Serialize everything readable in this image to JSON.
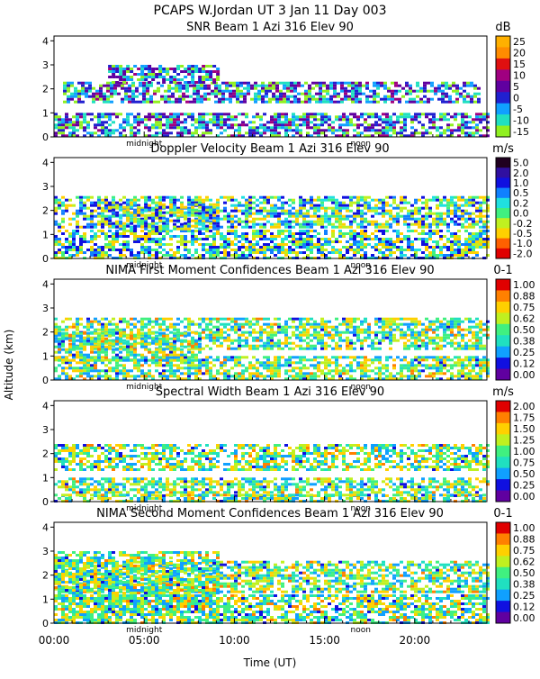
{
  "header": {
    "line1": "PCAPS W.Jordan UT   3 Jan 11 Day 003"
  },
  "x_axis": {
    "label": "Time (UT)",
    "tick_labels": [
      "00:00",
      "05:00",
      "10:00",
      "15:00",
      "20:00"
    ],
    "tick_values_hours": [
      0,
      5,
      10,
      15,
      20
    ],
    "range_hours": [
      0,
      24
    ],
    "markers": [
      {
        "label": "midnight",
        "hour": 5
      },
      {
        "label": "noon",
        "hour": 17
      }
    ]
  },
  "y_axis": {
    "label": "Altitude (km)",
    "range_km": [
      0,
      4.2
    ],
    "tick_labels": [
      "0",
      "1",
      "2",
      "3",
      "4"
    ],
    "tick_values": [
      0,
      1,
      2,
      3,
      4
    ]
  },
  "panels": [
    {
      "title": "SNR Beam 1 Azi 316 Elev 90",
      "unit": "dB",
      "colorbar": {
        "labels": [
          "25",
          "20",
          "15",
          "10",
          "5",
          "0",
          "-5",
          "-10",
          "-15"
        ],
        "colors": [
          "#ffb000",
          "#ff8c00",
          "#e01010",
          "#a00080",
          "#6000a0",
          "#2020d0",
          "#10a0ff",
          "#20e0c0",
          "#90f020"
        ]
      }
    },
    {
      "title": "Doppler Velocity Beam 1 Azi 316 Elev 90",
      "unit": "m/s",
      "colorbar": {
        "labels": [
          "5.0",
          "2.0",
          "1.0",
          "0.5",
          "0.2",
          "0.0",
          "-0.2",
          "-0.5",
          "-1.0",
          "-2.0"
        ],
        "colors": [
          "#200020",
          "#3010a0",
          "#1010e0",
          "#1080ff",
          "#20e0e0",
          "#40f080",
          "#c0f020",
          "#ffd000",
          "#ff6000",
          "#e00000"
        ]
      }
    },
    {
      "title": "NIMA First Moment Confidences Beam 1 Azi 316 Elev 90",
      "unit": "0-1",
      "colorbar": {
        "labels": [
          "1.00",
          "0.88",
          "0.75",
          "0.62",
          "0.50",
          "0.38",
          "0.25",
          "0.12",
          "0.00"
        ],
        "colors": [
          "#e00000",
          "#ff8000",
          "#ffd000",
          "#c0f020",
          "#40f080",
          "#20e0c0",
          "#10a0ff",
          "#1010e0",
          "#6000a0"
        ]
      }
    },
    {
      "title": "Spectral Width Beam 1 Azi 316 Elev 90",
      "unit": "m/s",
      "colorbar": {
        "labels": [
          "2.00",
          "1.75",
          "1.50",
          "1.25",
          "1.00",
          "0.75",
          "0.50",
          "0.25",
          "0.00"
        ],
        "colors": [
          "#e00000",
          "#ff8000",
          "#ffd000",
          "#c0f020",
          "#40f080",
          "#20e0c0",
          "#10a0ff",
          "#1010e0",
          "#6000a0"
        ]
      }
    },
    {
      "title": "NIMA Second Moment Confidences Beam 1 Azi 316 Elev 90",
      "unit": "0-1",
      "colorbar": {
        "labels": [
          "1.00",
          "0.88",
          "0.75",
          "0.62",
          "0.50",
          "0.38",
          "0.25",
          "0.12",
          "0.00"
        ],
        "colors": [
          "#e00000",
          "#ff8000",
          "#ffd000",
          "#c0f020",
          "#40f080",
          "#20e0c0",
          "#10a0ff",
          "#1010e0",
          "#6000a0"
        ]
      }
    }
  ],
  "chart_data": [
    {
      "type": "heatmap",
      "title": "SNR Beam 1 Azi 316 Elev 90",
      "xlabel": "Time (UT)",
      "ylabel": "Altitude (km)",
      "xlim_hours": [
        0,
        24
      ],
      "ylim_km": [
        0,
        4.2
      ],
      "colorbar_unit": "dB",
      "colorbar_range": [
        -15,
        25
      ],
      "layers_km": [
        {
          "from_hour": 0,
          "to_hour": 24,
          "bottom": 0.0,
          "top": 1.0,
          "value": -10
        },
        {
          "from_hour": 0.5,
          "to_hour": 23.5,
          "bottom": 1.4,
          "top": 2.3,
          "value": -12
        },
        {
          "from_hour": 3,
          "to_hour": 9,
          "bottom": 2.3,
          "top": 3.0,
          "value": -12
        }
      ]
    },
    {
      "type": "heatmap",
      "title": "Doppler Velocity Beam 1 Azi 316 Elev 90",
      "xlabel": "Time (UT)",
      "ylabel": "Altitude (km)",
      "xlim_hours": [
        0,
        24
      ],
      "ylim_km": [
        0,
        4.2
      ],
      "colorbar_unit": "m/s",
      "colorbar_range": [
        -2.0,
        5.0
      ],
      "layers_km": [
        {
          "from_hour": 0,
          "to_hour": 24,
          "bottom": 0.0,
          "top": 1.2,
          "value": -0.5
        },
        {
          "from_hour": 0,
          "to_hour": 24,
          "bottom": 1.3,
          "top": 2.6,
          "value": 0.2
        },
        {
          "from_hour": 3,
          "to_hour": 9,
          "bottom": 1.2,
          "top": 2.3,
          "value": 1.0
        }
      ]
    },
    {
      "type": "heatmap",
      "title": "NIMA First Moment Confidences Beam 1 Azi 316 Elev 90",
      "xlabel": "Time (UT)",
      "ylabel": "Altitude (km)",
      "xlim_hours": [
        0,
        24
      ],
      "ylim_km": [
        0,
        4.2
      ],
      "colorbar_unit": "0-1",
      "colorbar_range": [
        0,
        1
      ],
      "layers_km": [
        {
          "from_hour": 0,
          "to_hour": 24,
          "bottom": 0.0,
          "top": 1.0,
          "value": 0.5
        },
        {
          "from_hour": 0,
          "to_hour": 24,
          "bottom": 1.3,
          "top": 2.6,
          "value": 0.5
        },
        {
          "from_hour": 0,
          "to_hour": 8,
          "bottom": 0.8,
          "top": 2.0,
          "value": 0.62
        }
      ]
    },
    {
      "type": "heatmap",
      "title": "Spectral Width Beam 1 Azi 316 Elev 90",
      "xlabel": "Time (UT)",
      "ylabel": "Altitude (km)",
      "xlim_hours": [
        0,
        24
      ],
      "ylim_km": [
        0,
        4.2
      ],
      "colorbar_unit": "m/s",
      "colorbar_range": [
        0,
        2
      ],
      "layers_km": [
        {
          "from_hour": 0,
          "to_hour": 24,
          "bottom": 0.0,
          "top": 0.3,
          "value": 2.0
        },
        {
          "from_hour": 0,
          "to_hour": 24,
          "bottom": 0.3,
          "top": 1.0,
          "value": 0.6
        },
        {
          "from_hour": 0,
          "to_hour": 24,
          "bottom": 1.3,
          "top": 2.4,
          "value": 0.6
        }
      ]
    },
    {
      "type": "heatmap",
      "title": "NIMA Second Moment Confidences Beam 1 Azi 316 Elev 90",
      "xlabel": "Time (UT)",
      "ylabel": "Altitude (km)",
      "xlim_hours": [
        0,
        24
      ],
      "ylim_km": [
        0,
        4.2
      ],
      "colorbar_unit": "0-1",
      "colorbar_range": [
        0,
        1
      ],
      "layers_km": [
        {
          "from_hour": 0,
          "to_hour": 24,
          "bottom": 0.0,
          "top": 1.2,
          "value": 0.12
        },
        {
          "from_hour": 0,
          "to_hour": 24,
          "bottom": 1.3,
          "top": 2.6,
          "value": 0.25
        },
        {
          "from_hour": 0,
          "to_hour": 9,
          "bottom": 0.5,
          "top": 3.0,
          "value": 0.12
        }
      ]
    }
  ]
}
